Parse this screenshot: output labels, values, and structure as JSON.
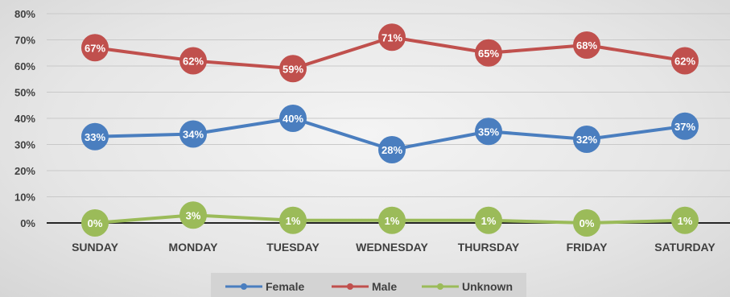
{
  "chart_data": {
    "type": "line",
    "categories": [
      "SUNDAY",
      "MONDAY",
      "TUESDAY",
      "WEDNESDAY",
      "THURSDAY",
      "FRIDAY",
      "SATURDAY"
    ],
    "series": [
      {
        "name": "Female",
        "color": "#4a7ebf",
        "values": [
          33,
          34,
          40,
          28,
          35,
          32,
          37
        ],
        "labels": [
          "33%",
          "34%",
          "40%",
          "28%",
          "35%",
          "32%",
          "37%"
        ]
      },
      {
        "name": "Male",
        "color": "#c0504d",
        "values": [
          67,
          62,
          59,
          71,
          65,
          68,
          62
        ],
        "labels": [
          "67%",
          "62%",
          "59%",
          "71%",
          "65%",
          "68%",
          "62%"
        ]
      },
      {
        "name": "Unknown",
        "color": "#9bbb59",
        "values": [
          0,
          3,
          1,
          1,
          1,
          0,
          1
        ],
        "labels": [
          "0%",
          "3%",
          "1%",
          "1%",
          "1%",
          "0%",
          "1%"
        ]
      }
    ],
    "y_ticks": [
      "0%",
      "10%",
      "20%",
      "30%",
      "40%",
      "50%",
      "60%",
      "70%",
      "80%"
    ],
    "ylim": [
      0,
      80
    ],
    "y_unit": "percent",
    "grid": true,
    "legend_position": "bottom",
    "title": "",
    "xlabel": "",
    "ylabel": ""
  }
}
